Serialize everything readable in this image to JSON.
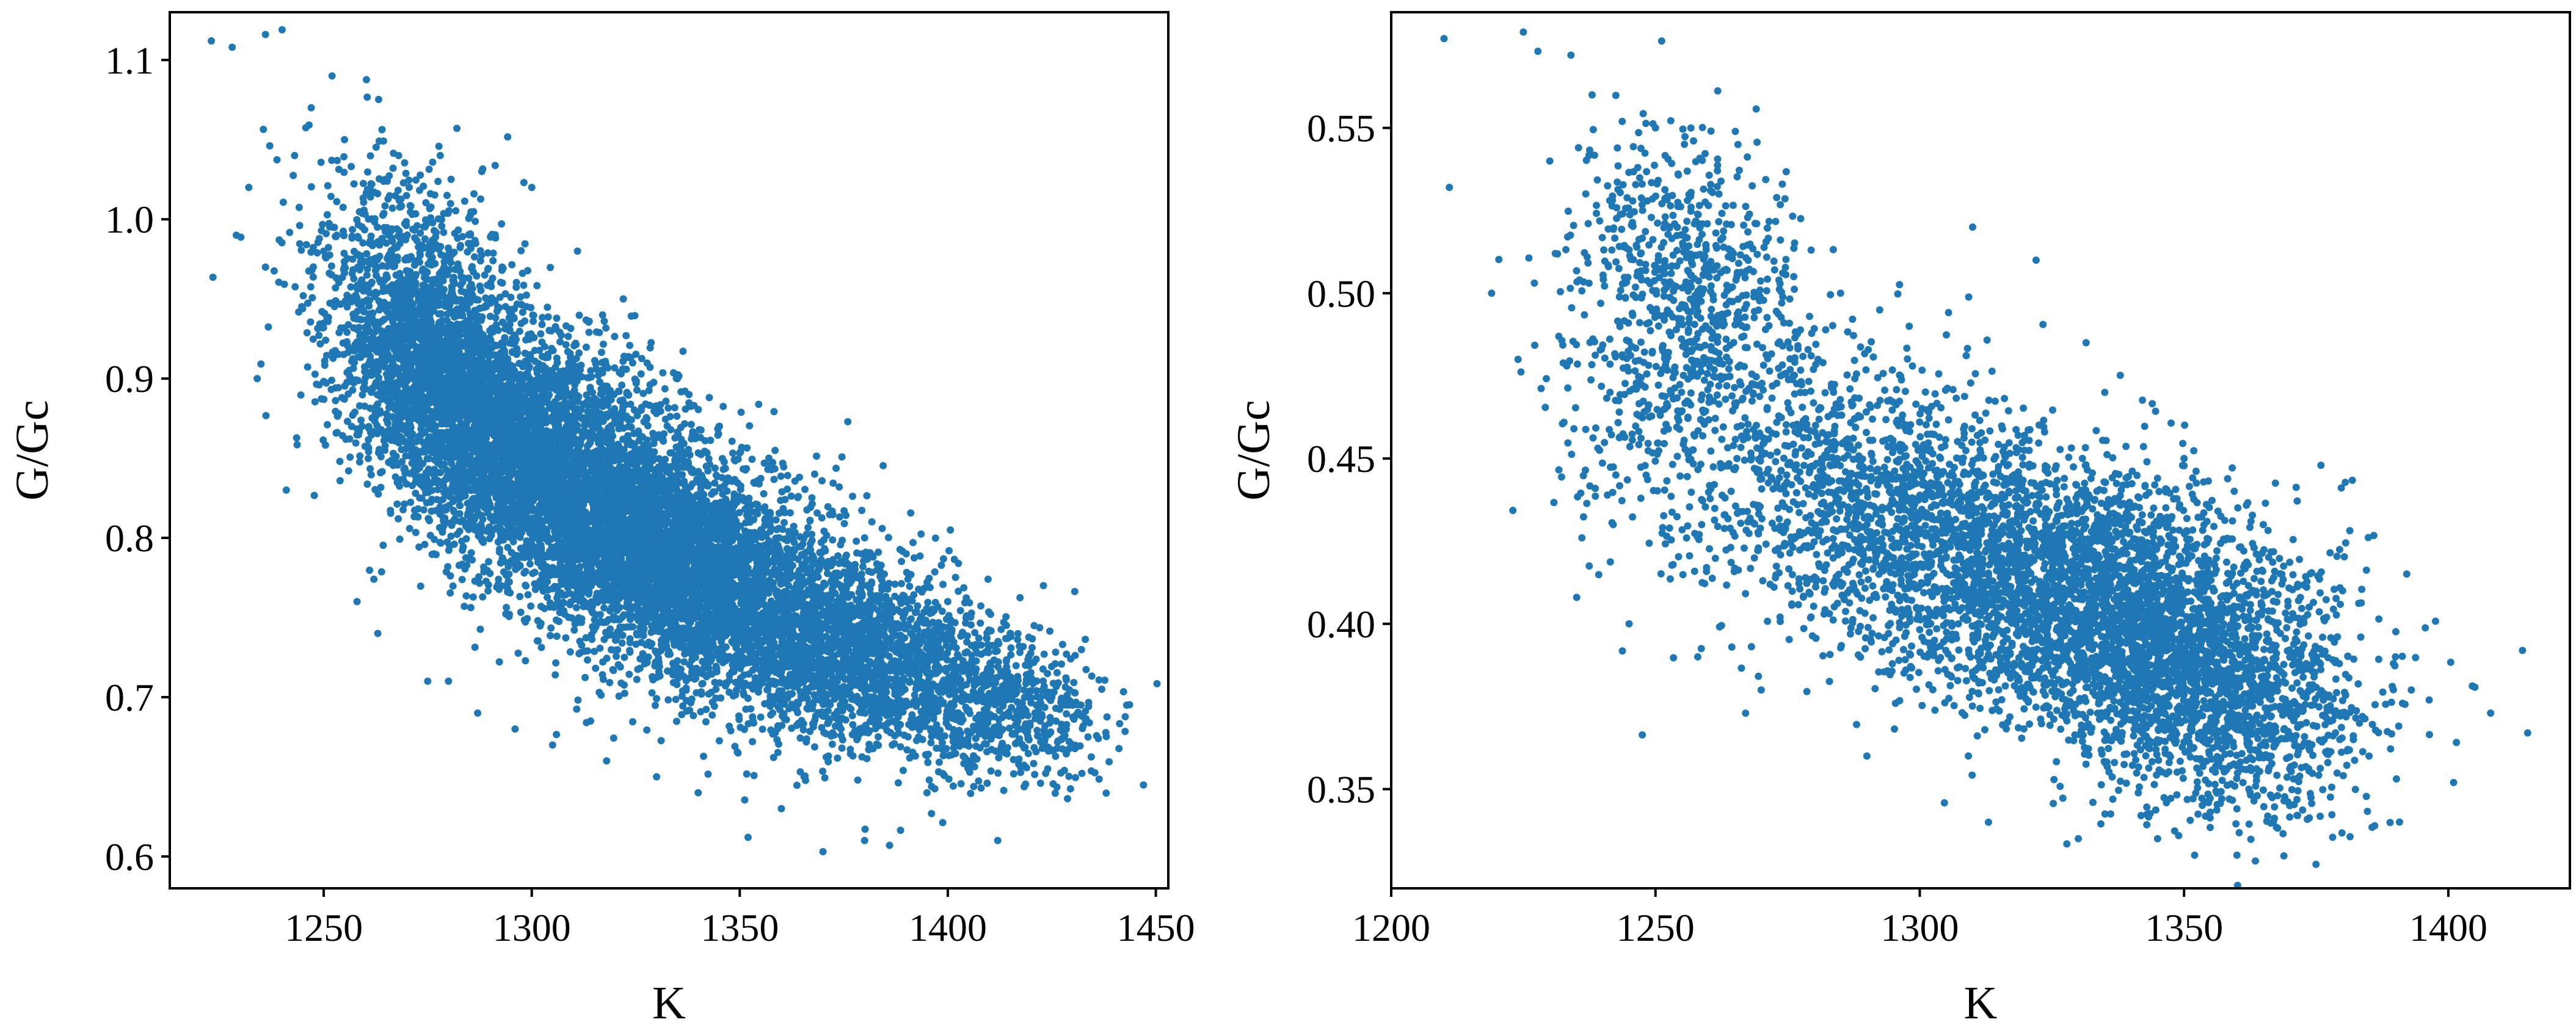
{
  "chart_data": [
    {
      "type": "scatter",
      "title": "",
      "xlabel": "K",
      "ylabel": "G/Gc",
      "xlim": [
        1213,
        1453
      ],
      "ylim": [
        0.58,
        1.13
      ],
      "xticks": [
        1250,
        1300,
        1350,
        1400,
        1450
      ],
      "yticks": [
        0.6,
        0.7,
        0.8,
        0.9,
        1.0,
        1.1
      ],
      "xtick_labels": [
        "1250",
        "1300",
        "1350",
        "1400",
        "1450"
      ],
      "ytick_labels": [
        "0.6",
        "0.7",
        "0.8",
        "0.9",
        "1.0",
        "1.1"
      ],
      "grid": false,
      "color": "#1f77b4",
      "series": [
        {
          "points": [
            [
              1223,
              1.112
            ],
            [
              1228,
              1.108
            ],
            [
              1236,
              1.116
            ],
            [
              1240,
              1.119
            ],
            [
              1232,
              1.02
            ],
            [
              1229,
              0.99
            ],
            [
              1236,
              0.97
            ],
            [
              1234,
              0.9
            ],
            [
              1241,
              0.83
            ],
            [
              1247,
              1.07
            ],
            [
              1252,
              1.09
            ],
            [
              1243,
              1.04
            ],
            [
              1255,
              1.05
            ],
            [
              1250,
              0.98
            ],
            [
              1258,
              0.76
            ],
            [
              1263,
              0.74
            ],
            [
              1275,
              0.71
            ],
            [
              1280,
              0.71
            ],
            [
              1287,
              0.69
            ],
            [
              1296,
              0.68
            ],
            [
              1305,
              0.67
            ],
            [
              1318,
              0.66
            ],
            [
              1330,
              0.65
            ],
            [
              1340,
              0.64
            ],
            [
              1352,
              0.612
            ],
            [
              1360,
              0.63
            ],
            [
              1370,
              0.603
            ],
            [
              1380,
              0.61
            ],
            [
              1386,
              0.607
            ],
            [
              1412,
              0.61
            ],
            [
              1395,
              0.64
            ],
            [
              1405,
              0.66
            ],
            [
              1418,
              0.68
            ],
            [
              1425,
              0.7
            ],
            [
              1430,
              0.695
            ],
            [
              1437,
              0.705
            ],
            [
              1443,
              0.695
            ],
            [
              1423,
              0.77
            ],
            [
              1415,
              0.74
            ],
            [
              1400,
              0.76
            ],
            [
              1390,
              0.79
            ],
            [
              1380,
              0.8
            ],
            [
              1368,
              0.84
            ],
            [
              1357,
              0.85
            ],
            [
              1345,
              0.87
            ],
            [
              1335,
              0.9
            ],
            [
              1322,
              0.95
            ],
            [
              1311,
              0.98
            ],
            [
              1300,
              1.02
            ],
            [
              1288,
              1.03
            ],
            [
              1278,
              1.04
            ],
            [
              1268,
              1.04
            ]
          ],
          "clusters": [
            {
              "cx": 1305,
              "cy": 0.84,
              "sx": 22,
              "sy": 0.05,
              "rho": -0.55,
              "n": 4200
            },
            {
              "cx": 1345,
              "cy": 0.77,
              "sx": 22,
              "sy": 0.045,
              "rho": -0.55,
              "n": 3600
            },
            {
              "cx": 1280,
              "cy": 0.9,
              "sx": 14,
              "sy": 0.045,
              "rho": -0.4,
              "n": 1500
            },
            {
              "cx": 1390,
              "cy": 0.72,
              "sx": 18,
              "sy": 0.03,
              "rho": -0.4,
              "n": 1300
            },
            {
              "cx": 1270,
              "cy": 0.97,
              "sx": 12,
              "sy": 0.04,
              "rho": -0.3,
              "n": 500
            },
            {
              "cx": 1420,
              "cy": 0.69,
              "sx": 10,
              "sy": 0.02,
              "rho": -0.2,
              "n": 250
            }
          ]
        }
      ]
    },
    {
      "type": "scatter",
      "title": "",
      "xlabel": "K",
      "ylabel": "G/Gc",
      "xlim": [
        1200,
        1423
      ],
      "ylim": [
        0.32,
        0.585
      ],
      "xticks": [
        1200,
        1250,
        1300,
        1350,
        1400
      ],
      "yticks": [
        0.35,
        0.4,
        0.45,
        0.5,
        0.55
      ],
      "xtick_labels": [
        "1200",
        "1250",
        "1300",
        "1350",
        "1400"
      ],
      "ytick_labels": [
        "0.35",
        "0.40",
        "0.45",
        "0.50",
        "0.55"
      ],
      "grid": false,
      "color": "#1f77b4",
      "series": [
        {
          "points": [
            [
              1210,
              0.577
            ],
            [
              1211,
              0.532
            ],
            [
              1225,
              0.579
            ],
            [
              1219,
              0.5
            ],
            [
              1224,
              0.48
            ],
            [
              1230,
              0.54
            ],
            [
              1234,
              0.572
            ],
            [
              1238,
              0.56
            ],
            [
              1242,
              0.43
            ],
            [
              1245,
              0.4
            ],
            [
              1258,
              0.39
            ],
            [
              1270,
              0.38
            ],
            [
              1290,
              0.36
            ],
            [
              1313,
              0.34
            ],
            [
              1330,
              0.335
            ],
            [
              1345,
              0.335
            ],
            [
              1352,
              0.33
            ],
            [
              1360,
              0.33
            ],
            [
              1370,
              0.345
            ],
            [
              1385,
              0.36
            ],
            [
              1393,
              0.38
            ],
            [
              1401,
              0.352
            ],
            [
              1408,
              0.373
            ],
            [
              1415,
              0.367
            ],
            [
              1390,
              0.39
            ],
            [
              1380,
              0.41
            ],
            [
              1365,
              0.43
            ],
            [
              1350,
              0.45
            ],
            [
              1335,
              0.47
            ],
            [
              1322,
              0.51
            ],
            [
              1310,
              0.52
            ],
            [
              1298,
              0.49
            ],
            [
              1285,
              0.5
            ],
            [
              1274,
              0.533
            ],
            [
              1262,
              0.53
            ],
            [
              1250,
              0.55
            ]
          ],
          "clusters": [
            {
              "cx": 1335,
              "cy": 0.405,
              "sx": 22,
              "sy": 0.022,
              "rho": -0.35,
              "n": 3200
            },
            {
              "cx": 1295,
              "cy": 0.435,
              "sx": 22,
              "sy": 0.025,
              "rho": -0.45,
              "n": 1500
            },
            {
              "cx": 1258,
              "cy": 0.505,
              "sx": 10,
              "sy": 0.022,
              "rho": -0.3,
              "n": 550
            },
            {
              "cx": 1355,
              "cy": 0.375,
              "sx": 14,
              "sy": 0.018,
              "rho": -0.3,
              "n": 900
            },
            {
              "cx": 1250,
              "cy": 0.47,
              "sx": 12,
              "sy": 0.035,
              "rho": -0.2,
              "n": 300
            }
          ]
        }
      ]
    }
  ]
}
